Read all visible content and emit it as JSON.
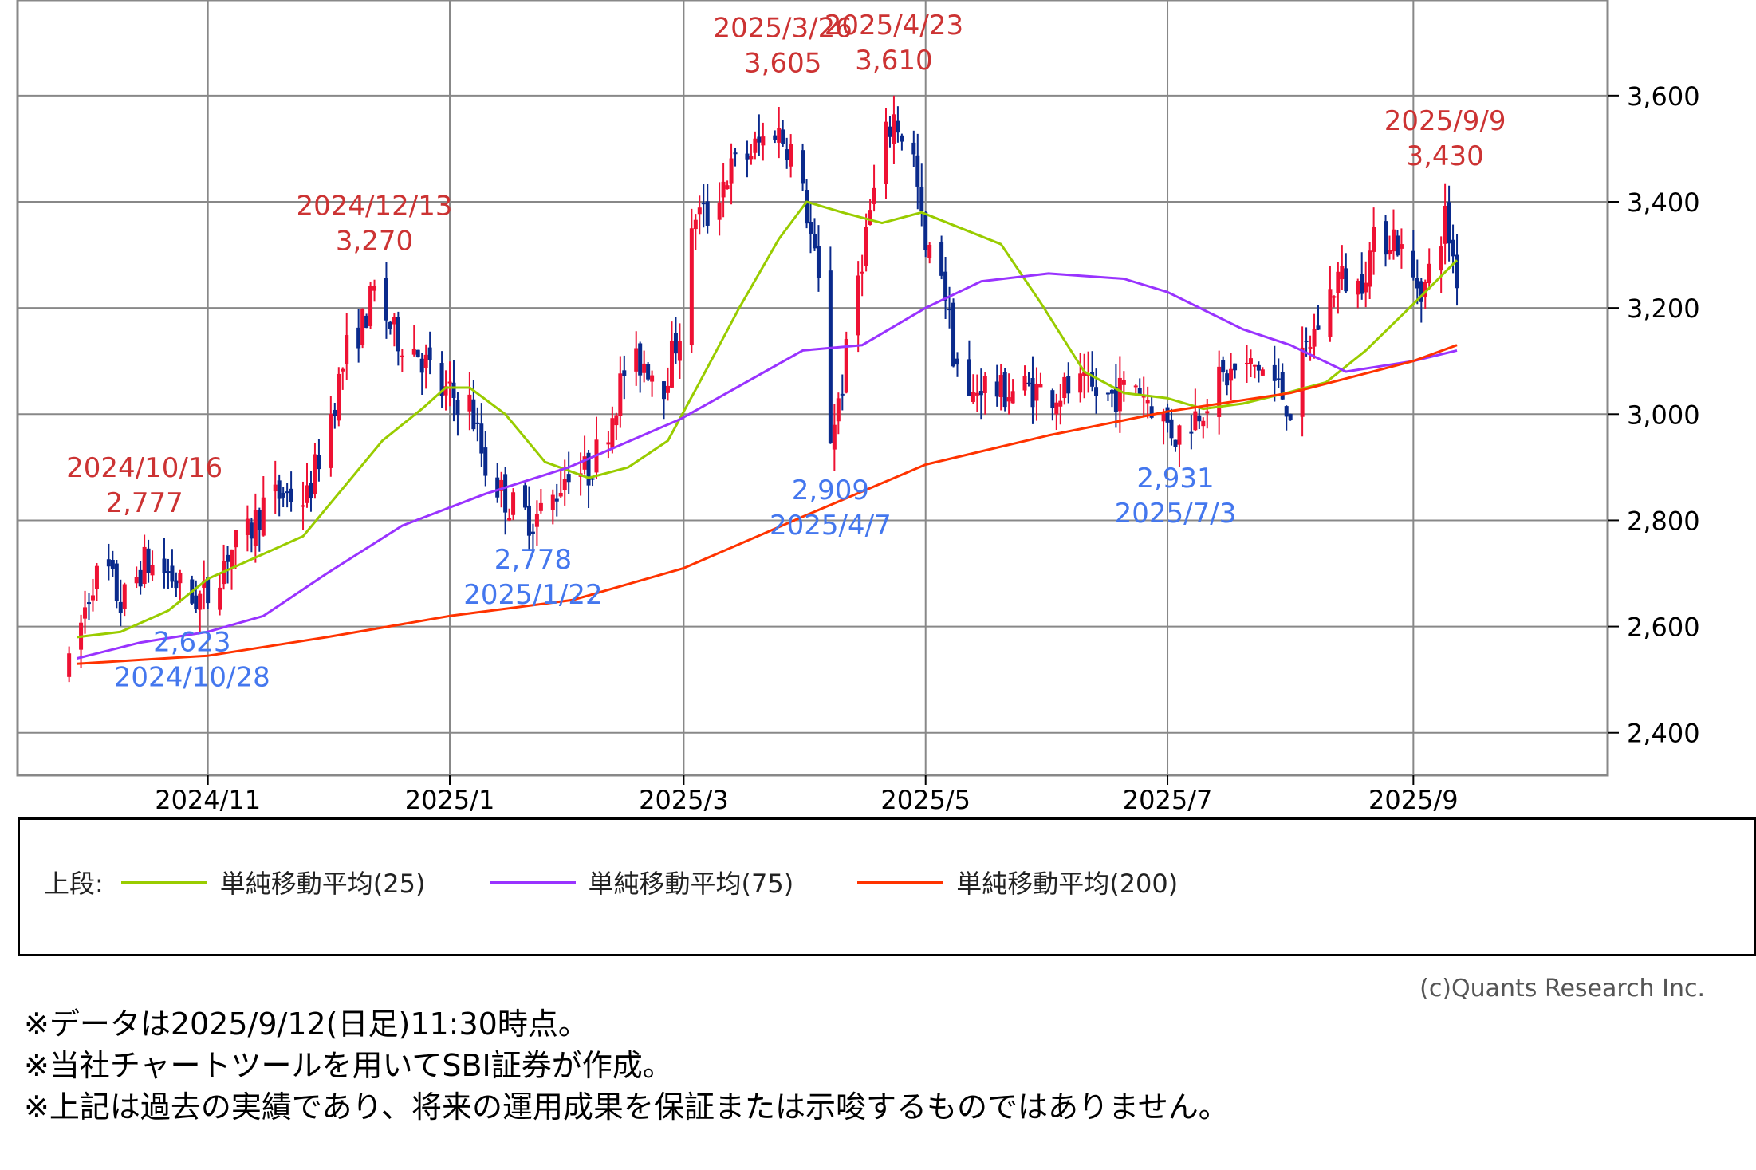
{
  "chart_data": {
    "type": "candlestick",
    "ylim": [
      2320,
      3780
    ],
    "grid": true,
    "y_ticks": [
      2400,
      2600,
      2800,
      3000,
      3200,
      3400,
      3600
    ],
    "y_tick_labels": [
      "2,400",
      "2,600",
      "2,800",
      "3,000",
      "3,200",
      "3,400",
      "3,600"
    ],
    "x_range": [
      "2024-09-14",
      "2025-10-20"
    ],
    "x_ticks": [
      "2024-11-01",
      "2025-01-01",
      "2025-03-01",
      "2025-05-01",
      "2025-07-01",
      "2025-09-01"
    ],
    "x_tick_labels": [
      "2024/11",
      "2025/1",
      "2025/3",
      "2025/5",
      "2025/7",
      "2025/9"
    ],
    "price_path": [
      [
        "2024-09-27",
        2520
      ],
      [
        "2024-10-03",
        2690
      ],
      [
        "2024-10-07",
        2700
      ],
      [
        "2024-10-10",
        2640
      ],
      [
        "2024-10-16",
        2720
      ],
      [
        "2024-10-22",
        2700
      ],
      [
        "2024-10-28",
        2650
      ],
      [
        "2024-11-01",
        2660
      ],
      [
        "2024-11-06",
        2740
      ],
      [
        "2024-11-11",
        2770
      ],
      [
        "2024-11-15",
        2830
      ],
      [
        "2024-11-20",
        2850
      ],
      [
        "2024-11-26",
        2840
      ],
      [
        "2024-12-02",
        3000
      ],
      [
        "2024-12-06",
        3120
      ],
      [
        "2024-12-10",
        3170
      ],
      [
        "2024-12-13",
        3230
      ],
      [
        "2024-12-18",
        3150
      ],
      [
        "2024-12-24",
        3120
      ],
      [
        "2024-12-30",
        3040
      ],
      [
        "2025-01-06",
        3020
      ],
      [
        "2025-01-10",
        2900
      ],
      [
        "2025-01-16",
        2830
      ],
      [
        "2025-01-22",
        2800
      ],
      [
        "2025-01-27",
        2840
      ],
      [
        "2025-01-31",
        2900
      ],
      [
        "2025-02-05",
        2890
      ],
      [
        "2025-02-10",
        2980
      ],
      [
        "2025-02-14",
        3080
      ],
      [
        "2025-02-19",
        3100
      ],
      [
        "2025-02-24",
        3060
      ],
      [
        "2025-02-28",
        3160
      ],
      [
        "2025-03-04",
        3380
      ],
      [
        "2025-03-07",
        3370
      ],
      [
        "2025-03-11",
        3440
      ],
      [
        "2025-03-14",
        3470
      ],
      [
        "2025-03-19",
        3500
      ],
      [
        "2025-03-24",
        3540
      ],
      [
        "2025-03-28",
        3500
      ],
      [
        "2025-04-01",
        3380
      ],
      [
        "2025-04-04",
        3240
      ],
      [
        "2025-04-07",
        2960
      ],
      [
        "2025-04-10",
        3060
      ],
      [
        "2025-04-14",
        3260
      ],
      [
        "2025-04-17",
        3380
      ],
      [
        "2025-04-21",
        3520
      ],
      [
        "2025-04-23",
        3560
      ],
      [
        "2025-04-28",
        3480
      ],
      [
        "2025-05-01",
        3300
      ],
      [
        "2025-05-05",
        3280
      ],
      [
        "2025-05-08",
        3120
      ],
      [
        "2025-05-12",
        3020
      ],
      [
        "2025-05-15",
        3060
      ],
      [
        "2025-05-20",
        3040
      ],
      [
        "2025-05-26",
        3050
      ],
      [
        "2025-06-02",
        3040
      ],
      [
        "2025-06-09",
        3050
      ],
      [
        "2025-06-16",
        3030
      ],
      [
        "2025-06-23",
        3060
      ],
      [
        "2025-06-27",
        3020
      ],
      [
        "2025-07-03",
        2960
      ],
      [
        "2025-07-08",
        3000
      ],
      [
        "2025-07-14",
        3060
      ],
      [
        "2025-07-18",
        3080
      ],
      [
        "2025-07-24",
        3090
      ],
      [
        "2025-07-29",
        3050
      ],
      [
        "2025-08-01",
        3010
      ],
      [
        "2025-08-05",
        3120
      ],
      [
        "2025-08-08",
        3170
      ],
      [
        "2025-08-13",
        3260
      ],
      [
        "2025-08-18",
        3240
      ],
      [
        "2025-08-22",
        3320
      ],
      [
        "2025-08-27",
        3340
      ],
      [
        "2025-09-01",
        3250
      ],
      [
        "2025-09-04",
        3240
      ],
      [
        "2025-09-09",
        3370
      ],
      [
        "2025-09-12",
        3260
      ]
    ],
    "series": [
      {
        "name": "単純移動平均(25)",
        "color": "#99cc00",
        "points": [
          [
            "2024-09-29",
            2580
          ],
          [
            "2024-10-10",
            2590
          ],
          [
            "2024-10-22",
            2630
          ],
          [
            "2024-11-01",
            2690
          ],
          [
            "2024-11-10",
            2720
          ],
          [
            "2024-11-25",
            2770
          ],
          [
            "2024-12-05",
            2860
          ],
          [
            "2024-12-15",
            2950
          ],
          [
            "2024-12-25",
            3010
          ],
          [
            "2024-12-31",
            3050
          ],
          [
            "2025-01-06",
            3050
          ],
          [
            "2025-01-15",
            3000
          ],
          [
            "2025-01-25",
            2910
          ],
          [
            "2025-02-05",
            2880
          ],
          [
            "2025-02-15",
            2900
          ],
          [
            "2025-02-25",
            2950
          ],
          [
            "2025-03-05",
            3060
          ],
          [
            "2025-03-15",
            3200
          ],
          [
            "2025-03-25",
            3330
          ],
          [
            "2025-04-01",
            3400
          ],
          [
            "2025-04-10",
            3380
          ],
          [
            "2025-04-20",
            3360
          ],
          [
            "2025-04-30",
            3380
          ],
          [
            "2025-05-10",
            3350
          ],
          [
            "2025-05-20",
            3320
          ],
          [
            "2025-05-30",
            3210
          ],
          [
            "2025-06-10",
            3080
          ],
          [
            "2025-06-20",
            3040
          ],
          [
            "2025-07-01",
            3030
          ],
          [
            "2025-07-10",
            3010
          ],
          [
            "2025-07-20",
            3020
          ],
          [
            "2025-07-31",
            3040
          ],
          [
            "2025-08-10",
            3060
          ],
          [
            "2025-08-20",
            3120
          ],
          [
            "2025-08-31",
            3200
          ],
          [
            "2025-09-12",
            3290
          ]
        ]
      },
      {
        "name": "単純移動平均(75)",
        "color": "#9933ff",
        "points": [
          [
            "2024-09-29",
            2540
          ],
          [
            "2024-10-15",
            2570
          ],
          [
            "2024-11-01",
            2590
          ],
          [
            "2024-11-15",
            2620
          ],
          [
            "2024-12-01",
            2700
          ],
          [
            "2024-12-20",
            2790
          ],
          [
            "2025-01-10",
            2850
          ],
          [
            "2025-01-31",
            2900
          ],
          [
            "2025-02-28",
            2990
          ],
          [
            "2025-03-31",
            3120
          ],
          [
            "2025-04-15",
            3130
          ],
          [
            "2025-05-01",
            3200
          ],
          [
            "2025-05-15",
            3250
          ],
          [
            "2025-06-01",
            3265
          ],
          [
            "2025-06-20",
            3255
          ],
          [
            "2025-07-01",
            3230
          ],
          [
            "2025-07-20",
            3160
          ],
          [
            "2025-08-01",
            3130
          ],
          [
            "2025-08-15",
            3080
          ],
          [
            "2025-09-01",
            3100
          ],
          [
            "2025-09-12",
            3120
          ]
        ]
      },
      {
        "name": "単純移動平均(200)",
        "color": "#ff3300",
        "points": [
          [
            "2024-09-29",
            2530
          ],
          [
            "2024-11-01",
            2545
          ],
          [
            "2024-12-01",
            2580
          ],
          [
            "2025-01-01",
            2620
          ],
          [
            "2025-02-01",
            2650
          ],
          [
            "2025-03-01",
            2710
          ],
          [
            "2025-04-01",
            2810
          ],
          [
            "2025-05-01",
            2905
          ],
          [
            "2025-06-01",
            2960
          ],
          [
            "2025-07-01",
            3005
          ],
          [
            "2025-08-01",
            3040
          ],
          [
            "2025-09-01",
            3100
          ],
          [
            "2025-09-12",
            3130
          ]
        ]
      }
    ],
    "annotations": [
      {
        "kind": "high",
        "date_label": "2024/10/16",
        "value_label": "2,777",
        "date": "2024-10-16",
        "value": 2777
      },
      {
        "kind": "high",
        "date_label": "2024/12/13",
        "value_label": "3,270",
        "date": "2024-12-13",
        "value": 3270
      },
      {
        "kind": "high",
        "date_label": "2025/3/26",
        "value_label": "3,605",
        "date": "2025-03-26",
        "value": 3605
      },
      {
        "kind": "high",
        "date_label": "2025/4/23",
        "value_label": "3,610",
        "date": "2025-04-23",
        "value": 3610
      },
      {
        "kind": "high",
        "date_label": "2025/9/9",
        "value_label": "3,430",
        "date": "2025-09-09",
        "value": 3430
      },
      {
        "kind": "low",
        "date_label": "2024/10/28",
        "value_label": "2,623",
        "date": "2024-10-28",
        "value": 2623
      },
      {
        "kind": "low",
        "date_label": "2025/1/22",
        "value_label": "2,778",
        "date": "2025-01-22",
        "value": 2778
      },
      {
        "kind": "low",
        "date_label": "2025/4/7",
        "value_label": "2,909",
        "date": "2025-04-07",
        "value": 2909
      },
      {
        "kind": "low",
        "date_label": "2025/7/3",
        "value_label": "2,931",
        "date": "2025-07-03",
        "value": 2931
      }
    ],
    "colors": {
      "up": "#ee1133",
      "down": "#0a2a8c",
      "grid": "#888888",
      "high_label": "#cc3333",
      "low_label": "#4477ee"
    }
  },
  "legend": {
    "prefix": "上段:",
    "items": [
      {
        "label": "単純移動平均(25)",
        "color": "#99cc00"
      },
      {
        "label": "単純移動平均(75)",
        "color": "#9933ff"
      },
      {
        "label": "単純移動平均(200)",
        "color": "#ff3300"
      }
    ]
  },
  "copyright": "(c)Quants Research Inc.",
  "footnotes": [
    "※データは2025/9/12(日足)11:30時点。",
    "※当社チャートツールを用いてSBI証券が作成。",
    "※上記は過去の実績であり、将来の運用成果を保証または示唆するものではありません。"
  ]
}
